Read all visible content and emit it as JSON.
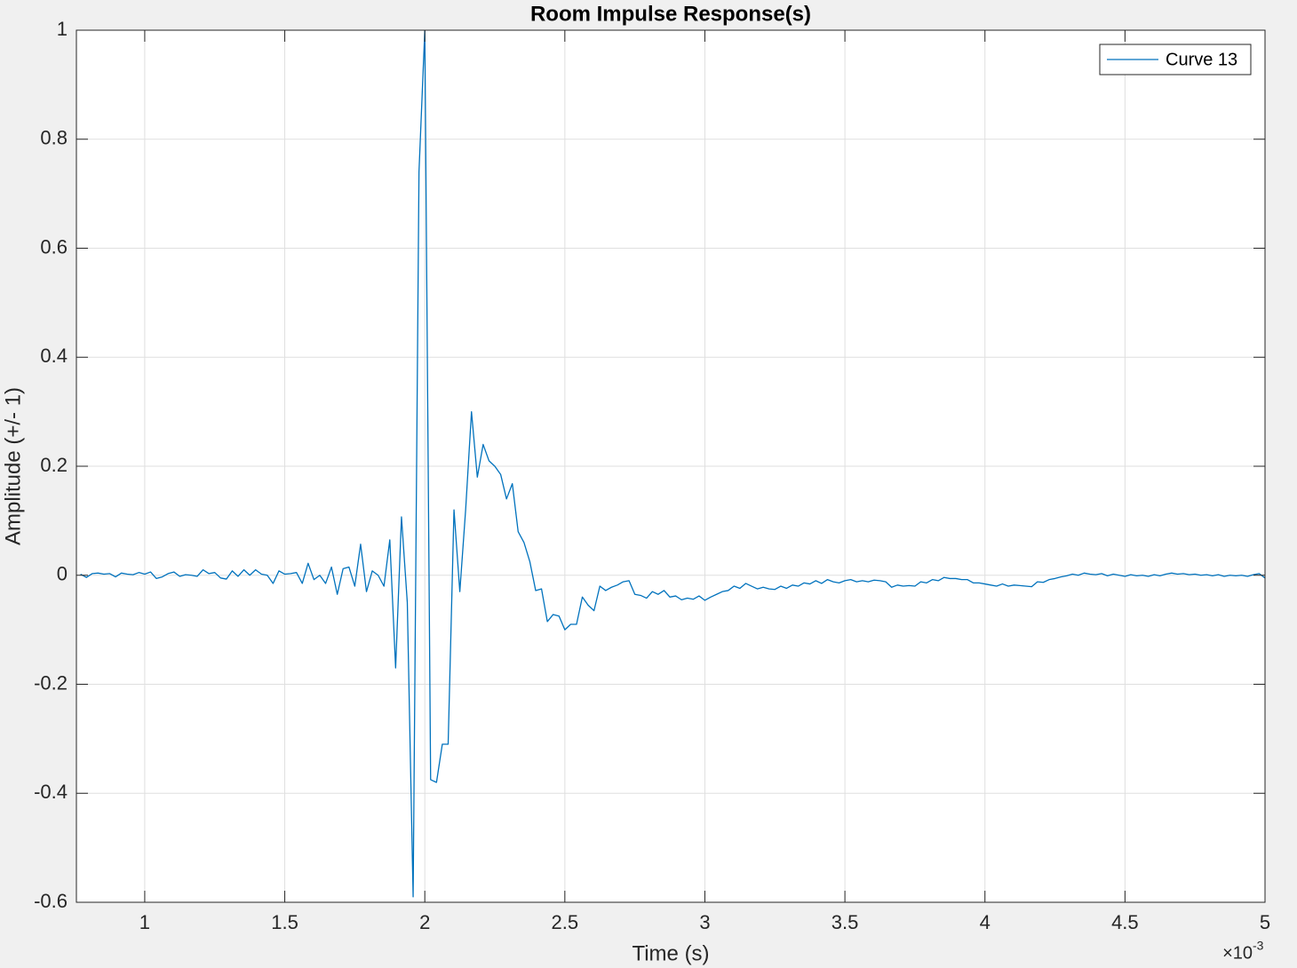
{
  "chart_data": {
    "type": "line",
    "title": "Room Impulse Response(s)",
    "x_label": "Time (s)",
    "y_label": "Amplitude (+/- 1)",
    "x_multiplier": {
      "base": "×10",
      "exponent": "-3"
    },
    "xlim": [
      0.756,
      5
    ],
    "xticks": [
      1,
      1.5,
      2,
      2.5,
      3,
      3.5,
      4,
      4.5,
      5
    ],
    "ylim": [
      -0.6,
      1
    ],
    "yticks": [
      -0.6,
      -0.4,
      -0.2,
      0,
      0.2,
      0.4,
      0.6,
      0.8,
      1
    ],
    "grid": true,
    "legend": "northeast",
    "series": [
      {
        "name": "Curve 13",
        "color": "#0072bd",
        "x": [
          0.7708,
          0.7917,
          0.8125,
          0.8333,
          0.8542,
          0.875,
          0.8958,
          0.9167,
          0.9375,
          0.9583,
          0.9792,
          1,
          1.0208,
          1.0417,
          1.0625,
          1.0833,
          1.1042,
          1.125,
          1.1458,
          1.1667,
          1.1875,
          1.2083,
          1.2292,
          1.25,
          1.2708,
          1.2917,
          1.3125,
          1.3333,
          1.3542,
          1.375,
          1.3958,
          1.4167,
          1.4375,
          1.4583,
          1.4792,
          1.5,
          1.5208,
          1.5417,
          1.5625,
          1.5833,
          1.6042,
          1.625,
          1.6458,
          1.6667,
          1.6875,
          1.7083,
          1.7292,
          1.75,
          1.7708,
          1.7917,
          1.8125,
          1.8333,
          1.8542,
          1.875,
          1.8958,
          1.9167,
          1.9375,
          1.9583,
          1.9792,
          2,
          2.0208,
          2.0417,
          2.0625,
          2.0833,
          2.1042,
          2.125,
          2.1458,
          2.1667,
          2.1875,
          2.2083,
          2.2292,
          2.25,
          2.2708,
          2.2917,
          2.3125,
          2.3333,
          2.3542,
          2.375,
          2.3958,
          2.4167,
          2.4375,
          2.4583,
          2.4792,
          2.5,
          2.5208,
          2.5417,
          2.5625,
          2.5833,
          2.6042,
          2.625,
          2.6458,
          2.6667,
          2.6875,
          2.7083,
          2.7292,
          2.75,
          2.7708,
          2.7917,
          2.8125,
          2.8333,
          2.8542,
          2.875,
          2.8958,
          2.9167,
          2.9375,
          2.9583,
          2.9792,
          3,
          3.0208,
          3.0417,
          3.0625,
          3.0833,
          3.1042,
          3.125,
          3.1458,
          3.1667,
          3.1875,
          3.2083,
          3.2292,
          3.25,
          3.2708,
          3.2917,
          3.3125,
          3.3333,
          3.3542,
          3.375,
          3.3958,
          3.4167,
          3.4375,
          3.4583,
          3.4792,
          3.5,
          3.5208,
          3.5417,
          3.5625,
          3.5833,
          3.6042,
          3.625,
          3.6458,
          3.6667,
          3.6875,
          3.7083,
          3.7292,
          3.75,
          3.7708,
          3.7917,
          3.8125,
          3.8333,
          3.8542,
          3.875,
          3.8958,
          3.9167,
          3.9375,
          3.9583,
          3.9792,
          4,
          4.0208,
          4.0417,
          4.0625,
          4.0833,
          4.1042,
          4.125,
          4.1458,
          4.1667,
          4.1875,
          4.2083,
          4.2292,
          4.25,
          4.2708,
          4.2917,
          4.3125,
          4.3333,
          4.3542,
          4.375,
          4.3958,
          4.4167,
          4.4375,
          4.4583,
          4.4792,
          4.5,
          4.5208,
          4.5417,
          4.5625,
          4.5833,
          4.6042,
          4.625,
          4.6458,
          4.6667,
          4.6875,
          4.7083,
          4.7292,
          4.75,
          4.7708,
          4.7917,
          4.8125,
          4.8333,
          4.8542,
          4.875,
          4.8958,
          4.9167,
          4.9375,
          4.9583,
          4.9792,
          5
        ],
        "values": [
          0.002,
          -0.004,
          0.003,
          0.004,
          0.002,
          0.003,
          -0.003,
          0.004,
          0.002,
          0.001,
          0.005,
          0.002,
          0.006,
          -0.006,
          -0.003,
          0.003,
          0.006,
          -0.002,
          0.001,
          0.0,
          -0.002,
          0.01,
          0.003,
          0.005,
          -0.005,
          -0.007,
          0.008,
          -0.002,
          0.01,
          0.0,
          0.01,
          0.002,
          0.0,
          -0.015,
          0.008,
          0.002,
          0.003,
          0.005,
          -0.015,
          0.022,
          -0.008,
          0.0,
          -0.015,
          0.015,
          -0.035,
          0.012,
          0.015,
          -0.02,
          0.057,
          -0.03,
          0.008,
          0.0,
          -0.02,
          0.065,
          -0.17,
          0.107,
          -0.05,
          -0.59,
          0.74,
          1.0,
          -0.375,
          -0.38,
          -0.31,
          -0.31,
          0.12,
          -0.03,
          0.12,
          0.3,
          0.18,
          0.24,
          0.21,
          0.2,
          0.185,
          0.14,
          0.168,
          0.08,
          0.06,
          0.025,
          -0.028,
          -0.025,
          -0.085,
          -0.072,
          -0.075,
          -0.1,
          -0.09,
          -0.09,
          -0.04,
          -0.055,
          -0.065,
          -0.02,
          -0.028,
          -0.022,
          -0.018,
          -0.012,
          -0.01,
          -0.035,
          -0.037,
          -0.042,
          -0.03,
          -0.035,
          -0.028,
          -0.04,
          -0.038,
          -0.045,
          -0.042,
          -0.044,
          -0.038,
          -0.046,
          -0.04,
          -0.035,
          -0.03,
          -0.028,
          -0.02,
          -0.024,
          -0.015,
          -0.02,
          -0.025,
          -0.022,
          -0.025,
          -0.026,
          -0.02,
          -0.024,
          -0.018,
          -0.02,
          -0.014,
          -0.016,
          -0.01,
          -0.015,
          -0.008,
          -0.012,
          -0.014,
          -0.01,
          -0.008,
          -0.012,
          -0.01,
          -0.012,
          -0.009,
          -0.01,
          -0.012,
          -0.022,
          -0.018,
          -0.02,
          -0.019,
          -0.02,
          -0.012,
          -0.014,
          -0.008,
          -0.01,
          -0.004,
          -0.006,
          -0.006,
          -0.008,
          -0.008,
          -0.014,
          -0.014,
          -0.016,
          -0.018,
          -0.02,
          -0.016,
          -0.02,
          -0.018,
          -0.019,
          -0.02,
          -0.021,
          -0.012,
          -0.013,
          -0.008,
          -0.006,
          -0.003,
          -0.001,
          0.002,
          0.0,
          0.004,
          0.002,
          0.001,
          0.003,
          -0.001,
          0.002,
          0.0,
          -0.002,
          0.001,
          -0.001,
          0.0,
          -0.002,
          0.001,
          -0.001,
          0.002,
          0.004,
          0.002,
          0.003,
          0.001,
          0.002,
          0.0,
          0.001,
          -0.001,
          0.001,
          -0.002,
          0.0,
          -0.001,
          0.0,
          -0.002,
          0.001,
          0.003,
          -0.005
        ]
      }
    ]
  }
}
